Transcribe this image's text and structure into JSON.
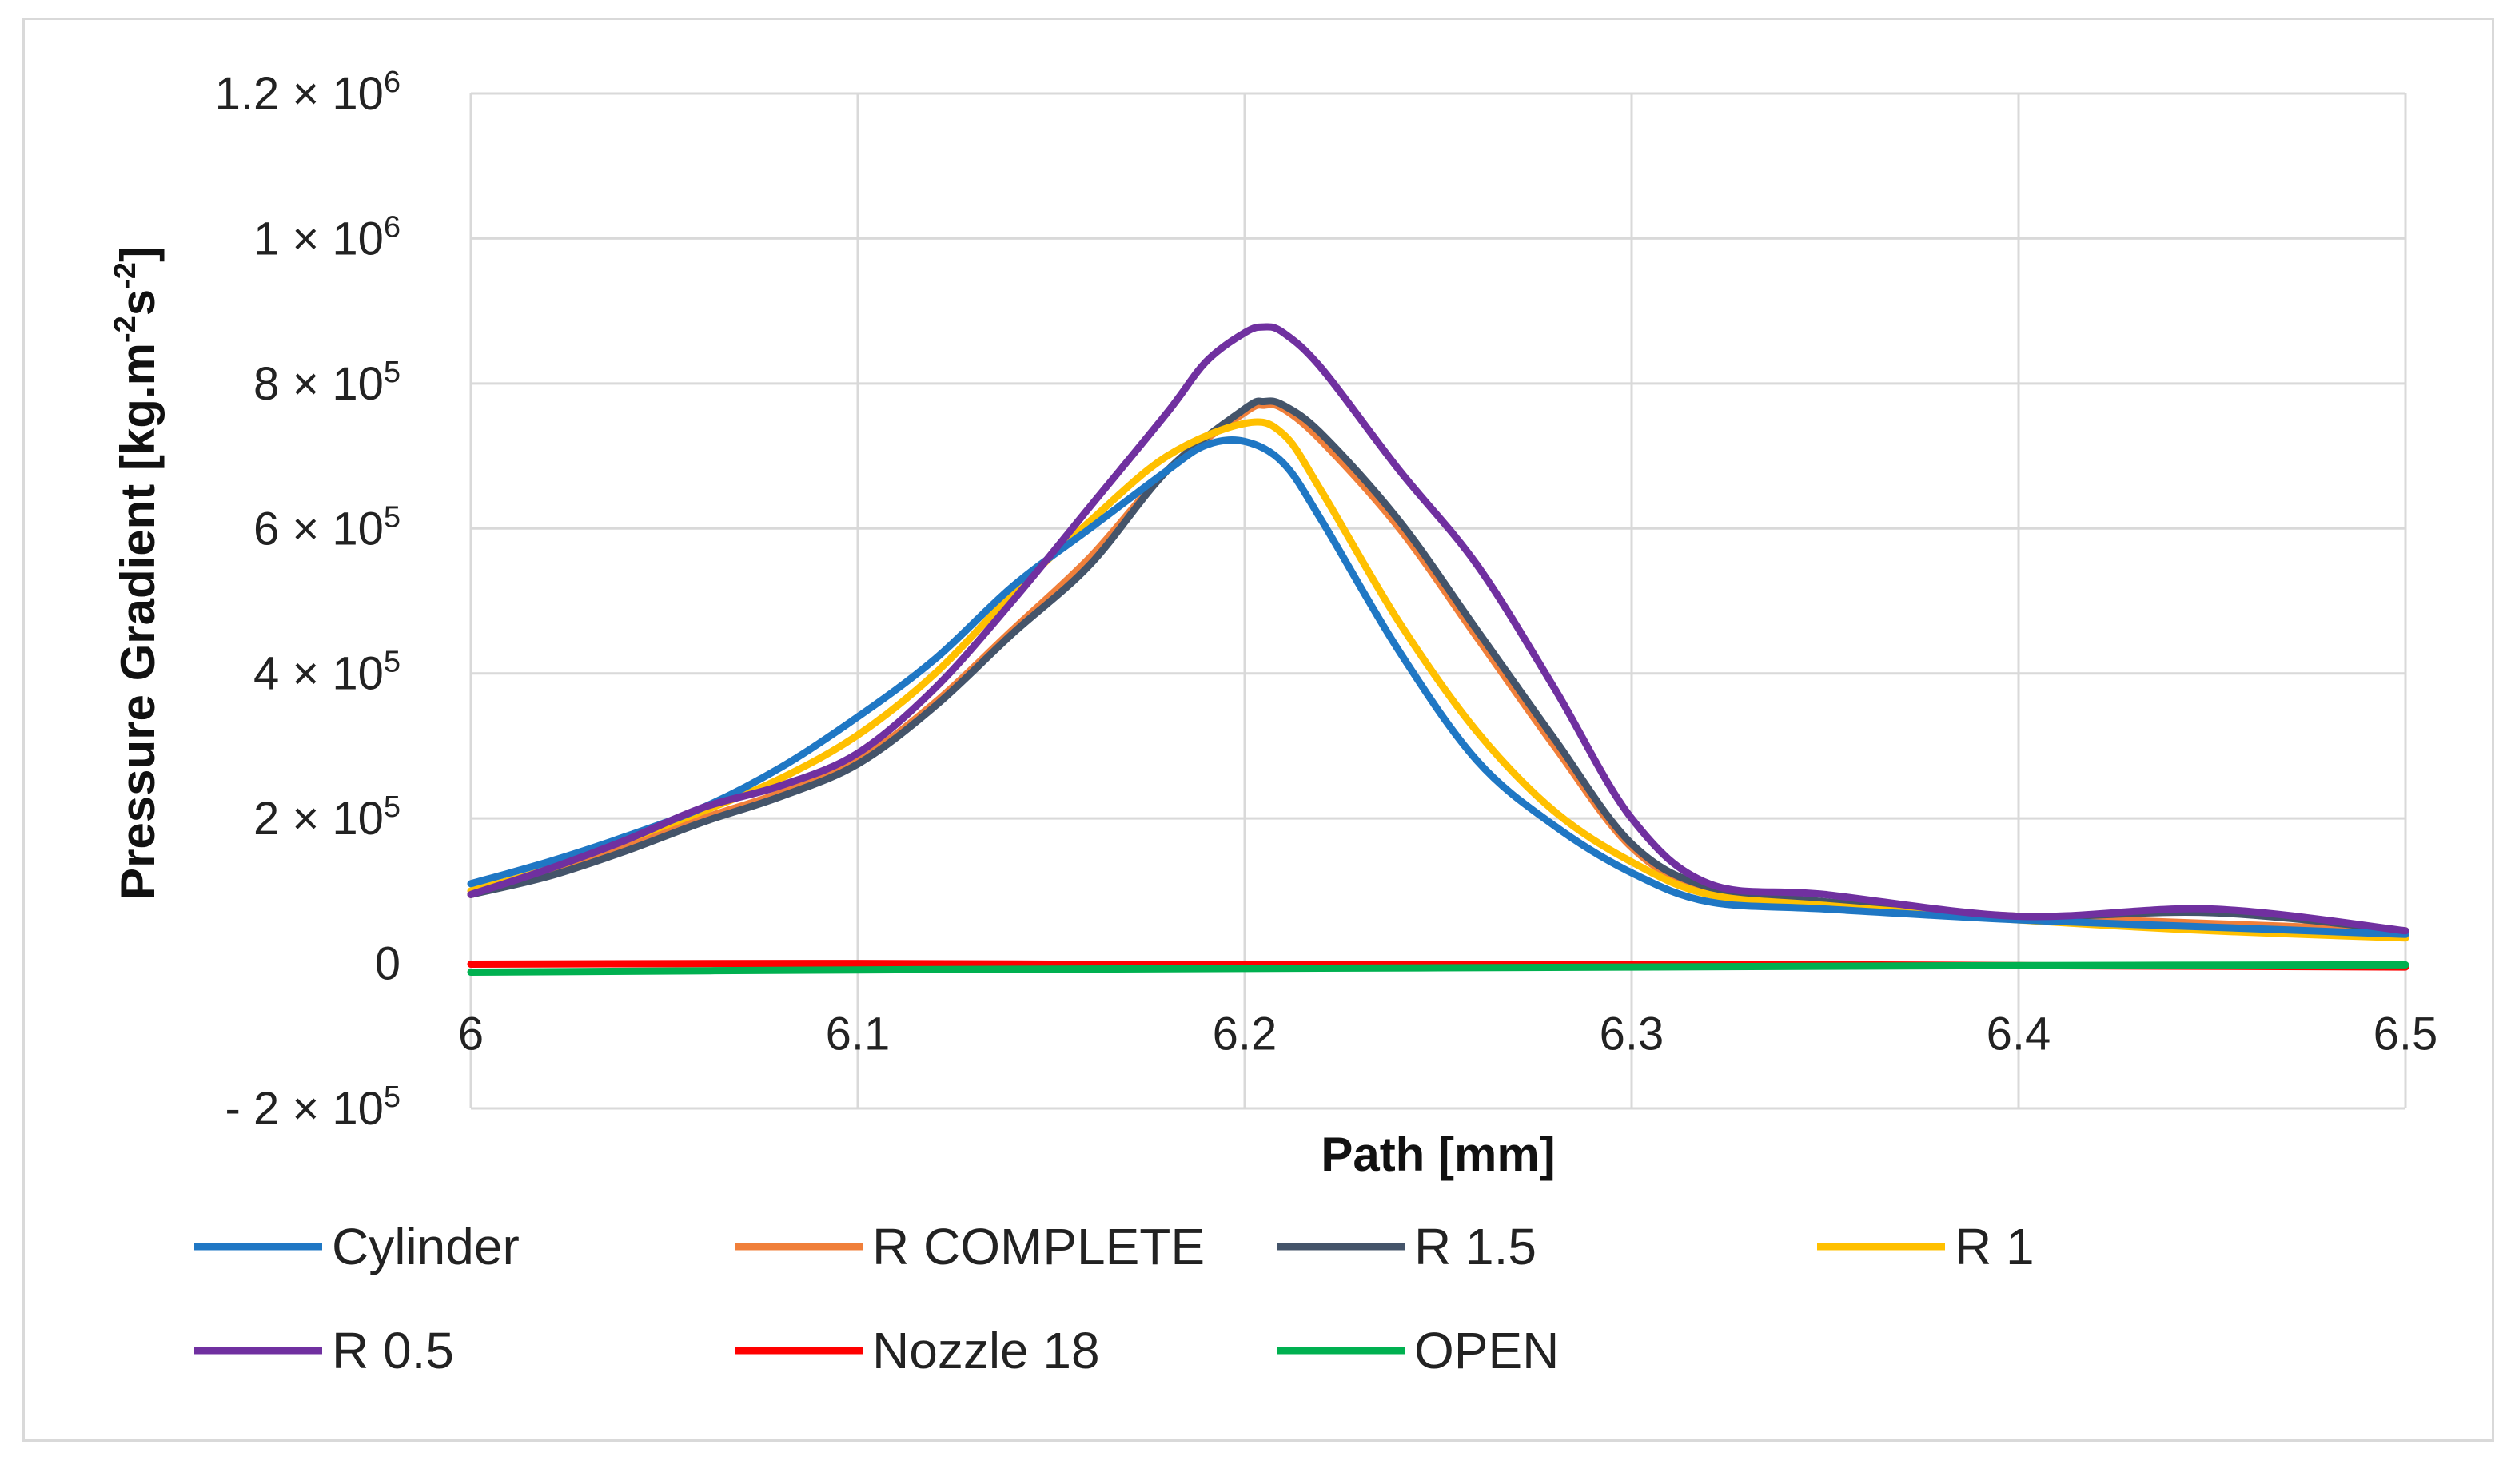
{
  "chart_data": {
    "type": "line",
    "xlabel": "Path [mm]",
    "ylabel": "Pressure Gradient [kg.m-2s-2]",
    "ylabel_parts": {
      "prefix": "Pressure Gradient [kg.m",
      "exp1": "-2",
      "mid": "s",
      "exp2": "-2",
      "suffix": "]"
    },
    "xlim": [
      6.0,
      6.5
    ],
    "ylim": [
      -200000,
      1200000
    ],
    "grid": true,
    "legend_position": "bottom",
    "x_ticks": [
      {
        "value": 6.0,
        "label": "6"
      },
      {
        "value": 6.1,
        "label": "6.1"
      },
      {
        "value": 6.2,
        "label": "6.2"
      },
      {
        "value": 6.3,
        "label": "6.3"
      },
      {
        "value": 6.4,
        "label": "6.4"
      },
      {
        "value": 6.5,
        "label": "6.5"
      }
    ],
    "y_ticks": [
      {
        "value": 1200000,
        "label": "1.2 × 10",
        "exp": "6"
      },
      {
        "value": 1000000,
        "label": "1 × 10",
        "exp": "6"
      },
      {
        "value": 800000,
        "label": "8 × 10",
        "exp": "5"
      },
      {
        "value": 600000,
        "label": "6 × 10",
        "exp": "5"
      },
      {
        "value": 400000,
        "label": "4 × 10",
        "exp": "5"
      },
      {
        "value": 200000,
        "label": "2 × 10",
        "exp": "5"
      },
      {
        "value": 0,
        "label": "0",
        "exp": ""
      },
      {
        "value": -200000,
        "label": "- 2 × 10",
        "exp": "5"
      }
    ],
    "x_label_y_value": 0,
    "series": [
      {
        "name": "Cylinder",
        "color": "#1f77c4",
        "x": [
          6.0,
          6.02,
          6.04,
          6.06,
          6.08,
          6.1,
          6.12,
          6.14,
          6.16,
          6.18,
          6.19,
          6.2,
          6.21,
          6.22,
          6.24,
          6.26,
          6.28,
          6.3,
          6.32,
          6.35,
          6.4,
          6.45,
          6.5
        ],
        "y": [
          110000,
          140000,
          175000,
          215000,
          270000,
          340000,
          420000,
          520000,
          600000,
          680000,
          715000,
          720000,
          690000,
          610000,
          430000,
          280000,
          190000,
          125000,
          85000,
          75000,
          60000,
          50000,
          40000
        ]
      },
      {
        "name": "R COMPLETE",
        "color": "#f07f3a",
        "x": [
          6.0,
          6.02,
          6.04,
          6.06,
          6.08,
          6.1,
          6.12,
          6.14,
          6.16,
          6.18,
          6.2,
          6.205,
          6.21,
          6.22,
          6.24,
          6.26,
          6.28,
          6.3,
          6.32,
          6.35,
          6.4,
          6.45,
          6.5
        ],
        "y": [
          95000,
          125000,
          160000,
          200000,
          235000,
          280000,
          360000,
          460000,
          560000,
          680000,
          760000,
          770000,
          765000,
          720000,
          600000,
          450000,
          300000,
          160000,
          100000,
          80000,
          65000,
          55000,
          45000
        ]
      },
      {
        "name": "R 1.5",
        "color": "#44546a",
        "x": [
          6.0,
          6.02,
          6.04,
          6.06,
          6.08,
          6.1,
          6.12,
          6.14,
          6.16,
          6.18,
          6.2,
          6.205,
          6.21,
          6.22,
          6.24,
          6.26,
          6.28,
          6.3,
          6.32,
          6.35,
          6.4,
          6.45,
          6.5
        ],
        "y": [
          95000,
          120000,
          155000,
          195000,
          230000,
          275000,
          355000,
          455000,
          550000,
          680000,
          765000,
          775000,
          770000,
          730000,
          610000,
          460000,
          310000,
          165000,
          105000,
          85000,
          65000,
          70000,
          45000
        ]
      },
      {
        "name": "R 1",
        "color": "#ffc000",
        "x": [
          6.0,
          6.02,
          6.04,
          6.06,
          6.08,
          6.1,
          6.12,
          6.14,
          6.16,
          6.18,
          6.2,
          6.21,
          6.22,
          6.24,
          6.26,
          6.28,
          6.3,
          6.32,
          6.35,
          6.4,
          6.45,
          6.5
        ],
        "y": [
          100000,
          130000,
          170000,
          210000,
          255000,
          315000,
          400000,
          510000,
          610000,
          700000,
          745000,
          730000,
          650000,
          470000,
          320000,
          210000,
          140000,
          95000,
          80000,
          60000,
          45000,
          35000
        ]
      },
      {
        "name": "R 0.5",
        "color": "#7030a0",
        "x": [
          6.0,
          6.02,
          6.04,
          6.06,
          6.08,
          6.1,
          6.12,
          6.14,
          6.16,
          6.18,
          6.19,
          6.2,
          6.205,
          6.21,
          6.22,
          6.24,
          6.26,
          6.28,
          6.3,
          6.32,
          6.35,
          6.4,
          6.45,
          6.5
        ],
        "y": [
          95000,
          130000,
          170000,
          215000,
          245000,
          290000,
          380000,
          500000,
          630000,
          760000,
          830000,
          870000,
          878000,
          870000,
          820000,
          680000,
          550000,
          380000,
          200000,
          110000,
          95000,
          65000,
          75000,
          45000
        ]
      },
      {
        "name": "Nozzle 18",
        "color": "#ff0000",
        "x": [
          6.0,
          6.1,
          6.2,
          6.3,
          6.4,
          6.5
        ],
        "y": [
          -1000,
          0,
          -2000,
          -1000,
          -3000,
          -5000
        ]
      },
      {
        "name": "OPEN",
        "color": "#00b050",
        "x": [
          6.0,
          6.1,
          6.2,
          6.3,
          6.4,
          6.5
        ],
        "y": [
          -12000,
          -9000,
          -7000,
          -5000,
          -3000,
          -2000
        ]
      }
    ]
  }
}
